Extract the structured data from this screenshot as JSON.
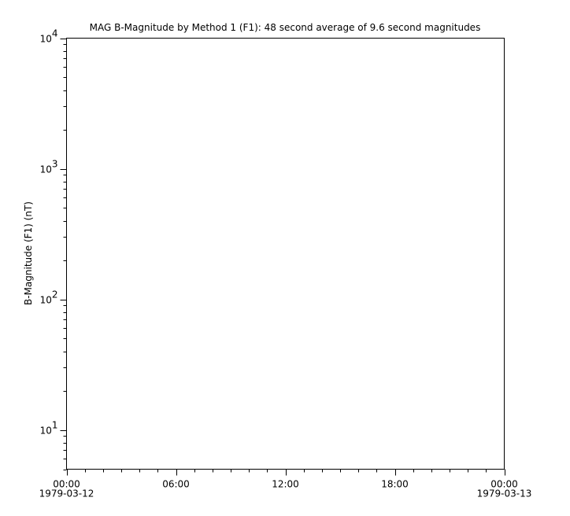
{
  "chart_data": {
    "type": "line",
    "title": "MAG  B-Magnitude by Method 1 (F1): 48 second average of 9.6 second magnitudes",
    "xlabel": "",
    "ylabel": "B-Magnitude (F1) (nT)",
    "yscale": "log",
    "ylim": [
      5,
      10000
    ],
    "xlim": [
      "1979-03-12T00:00",
      "1979-03-13T00:00"
    ],
    "y_ticks": [
      {
        "value": 10,
        "base": "10",
        "exp": "1"
      },
      {
        "value": 100,
        "base": "10",
        "exp": "2"
      },
      {
        "value": 1000,
        "base": "10",
        "exp": "3"
      },
      {
        "value": 10000,
        "base": "10",
        "exp": "4"
      }
    ],
    "x_ticks": [
      {
        "hour": 0,
        "label": "00:00",
        "date": "1979-03-12"
      },
      {
        "hour": 6,
        "label": "06:00",
        "date": ""
      },
      {
        "hour": 12,
        "label": "12:00",
        "date": ""
      },
      {
        "hour": 18,
        "label": "18:00",
        "date": ""
      },
      {
        "hour": 24,
        "label": "00:00",
        "date": "1979-03-13"
      }
    ],
    "series": [],
    "grid": false,
    "axis_color": "#000000"
  }
}
